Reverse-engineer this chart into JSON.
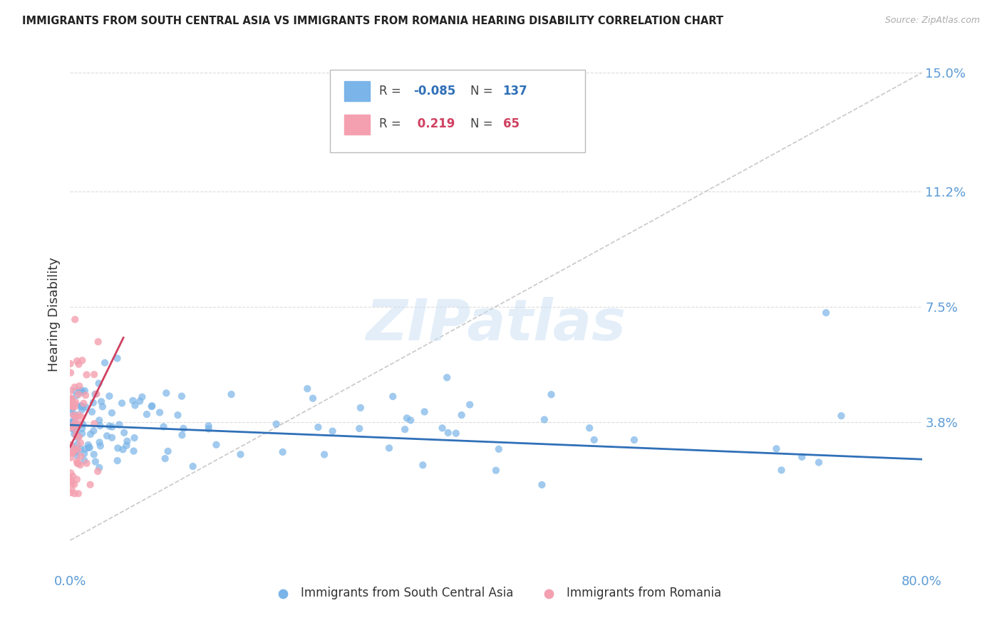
{
  "title": "IMMIGRANTS FROM SOUTH CENTRAL ASIA VS IMMIGRANTS FROM ROMANIA HEARING DISABILITY CORRELATION CHART",
  "source": "Source: ZipAtlas.com",
  "watermark": "ZIPatlas",
  "ylabel": "Hearing Disability",
  "xlim": [
    0.0,
    0.8
  ],
  "ylim": [
    -0.01,
    0.155
  ],
  "yticks": [
    0.038,
    0.075,
    0.112,
    0.15
  ],
  "ytick_labels": [
    "3.8%",
    "7.5%",
    "11.2%",
    "15.0%"
  ],
  "xticks": [
    0.0,
    0.8
  ],
  "xtick_labels": [
    "0.0%",
    "80.0%"
  ],
  "series1_color": "#7ab4e8",
  "series2_color": "#f4a0b0",
  "series1_label": "Immigrants from South Central Asia",
  "series2_label": "Immigrants from Romania",
  "R1": -0.085,
  "N1": 137,
  "R2": 0.219,
  "N2": 65,
  "trendline1_x": [
    0.0,
    0.8
  ],
  "trendline1_y": [
    0.037,
    0.026
  ],
  "trendline2_x": [
    0.0,
    0.05
  ],
  "trendline2_y": [
    0.03,
    0.065
  ],
  "refline_x": [
    0.0,
    0.8
  ],
  "refline_y": [
    0.0,
    0.15
  ],
  "background_color": "#ffffff",
  "grid_color": "#cccccc",
  "tick_color": "#5b9bd5"
}
